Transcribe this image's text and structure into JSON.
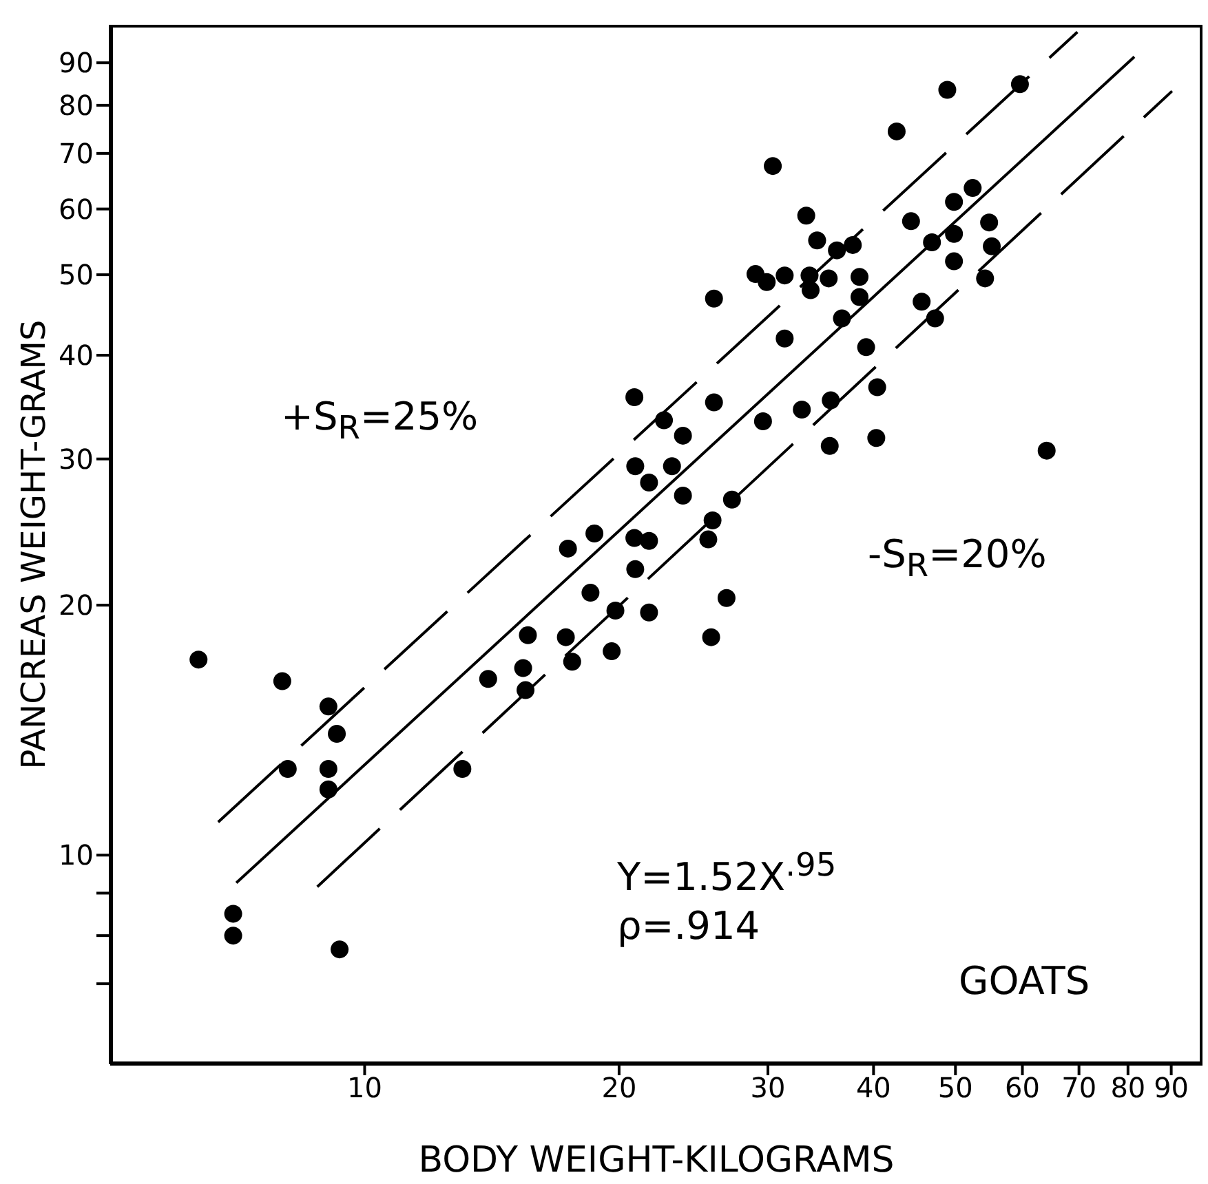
{
  "chart_data": {
    "type": "scatter",
    "xlabel": "BODY WEIGHT-KILOGRAMS",
    "ylabel": "PANCREAS WEIGHT-GRAMS",
    "log": "xy",
    "grid": false,
    "xlim": [
      5,
      98
    ],
    "ylim": [
      5.6,
      100
    ],
    "xticks": [
      10,
      20,
      30,
      40,
      50,
      60,
      70,
      80,
      90
    ],
    "yticks": [
      {
        "value": 7,
        "label": null
      },
      {
        "value": 8,
        "label": null
      },
      {
        "value": 9,
        "label": null
      },
      10,
      20,
      30,
      40,
      50,
      60,
      70,
      80,
      90
    ],
    "annotations": [
      "+S$_{R}$=25%",
      "-S$_{R}$=20%",
      "Y=1.52X$^{.95}$",
      "ρ=.914",
      "GOATS"
    ],
    "series": [
      {
        "marker": "circle",
        "color": "#000000",
        "x": [
          6.36,
          7.99,
          9.06,
          9.27,
          8.11,
          9.06,
          9.06,
          13.05,
          6.99,
          6.99,
          9.34,
          25.9,
          20.85,
          25.9,
          22.6,
          23.8,
          20.9,
          23.1,
          21.7,
          23.8,
          27.2,
          25.8,
          25.5,
          18.7,
          17.4,
          20.85,
          21.7,
          20.9,
          18.5,
          19.8,
          21.7,
          26.8,
          25.7,
          15.6,
          17.3,
          15.4,
          17.6,
          19.6,
          14.0,
          15.5,
          48.9,
          59.6,
          42.6,
          30.4,
          33.3,
          34.3,
          36.2,
          37.8,
          29.0,
          29.9,
          31.4,
          33.6,
          33.7,
          35.4,
          38.5,
          38.5,
          36.7,
          44.3,
          49.8,
          52.4,
          46.9,
          49.8,
          54.8,
          55.2,
          49.8,
          54.2,
          45.6,
          47.3,
          31.4,
          39.2,
          40.4,
          35.6,
          32.9,
          29.6,
          35.5,
          40.3,
          64.1
        ],
        "values": [
          17.2,
          16.2,
          15.1,
          14.0,
          12.7,
          12.7,
          12.0,
          12.7,
          8.5,
          8.0,
          7.7,
          46.8,
          35.6,
          35.1,
          33.4,
          32.0,
          29.4,
          29.4,
          28.1,
          27.1,
          26.8,
          25.3,
          24.0,
          24.4,
          23.4,
          24.1,
          23.9,
          22.1,
          20.7,
          19.7,
          19.6,
          20.4,
          18.3,
          18.4,
          18.3,
          16.8,
          17.1,
          17.6,
          16.3,
          15.8,
          83.5,
          84.8,
          74.4,
          67.6,
          58.9,
          55.0,
          53.5,
          54.3,
          50.1,
          49.0,
          49.9,
          49.9,
          47.9,
          49.5,
          49.7,
          47.0,
          44.3,
          58.0,
          61.2,
          63.6,
          54.7,
          56.0,
          57.8,
          54.1,
          51.9,
          49.5,
          46.4,
          44.3,
          41.9,
          40.9,
          36.6,
          35.3,
          34.4,
          33.3,
          31.1,
          31.8,
          30.7
        ]
      },
      {
        "type": "line",
        "marker": "none",
        "color": "#000000",
        "line_style": "solid",
        "x": [
          7.05,
          81.4
        ],
        "values": [
          9.26,
          91.5
        ]
      },
      {
        "type": "line",
        "marker": "none",
        "color": "#000000",
        "line_style": "dashed",
        "x": [
          6.71,
          69.7
        ],
        "values": [
          10.96,
          98
        ]
      },
      {
        "type": "line",
        "marker": "none",
        "color": "#000000",
        "line_style": "dashed",
        "x": [
          8.79,
          90.2
        ],
        "values": [
          9.16,
          83.2
        ]
      }
    ]
  }
}
